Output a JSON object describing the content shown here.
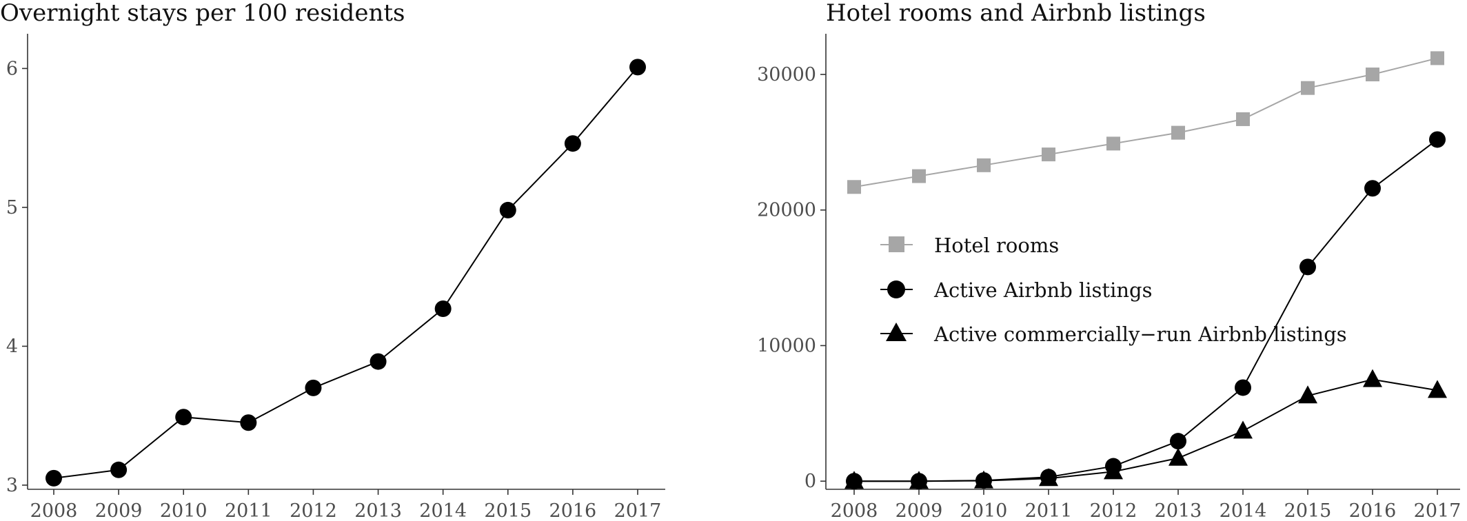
{
  "chart_data": [
    {
      "type": "line",
      "title": "Overnight stays per 100 residents",
      "xlabel": "",
      "ylabel": "",
      "categories": [
        "2008",
        "2009",
        "2010",
        "2011",
        "2012",
        "2013",
        "2014",
        "2015",
        "2016",
        "2017"
      ],
      "ylim": [
        2.97,
        6.25
      ],
      "yticks": [
        3,
        4,
        5,
        6
      ],
      "grid": false,
      "legend": "none",
      "series": [
        {
          "values": [
            3.05,
            3.11,
            3.49,
            3.45,
            3.7,
            3.89,
            4.27,
            4.98,
            5.46,
            6.01
          ],
          "marker": "circle",
          "color": "#000000"
        }
      ]
    },
    {
      "type": "line",
      "title": "Hotel rooms and Airbnb listings",
      "xlabel": "",
      "ylabel": "",
      "categories": [
        "2008",
        "2009",
        "2010",
        "2011",
        "2012",
        "2013",
        "2014",
        "2015",
        "2016",
        "2017"
      ],
      "ylim": [
        -600,
        33000
      ],
      "yticks": [
        0,
        10000,
        20000,
        30000
      ],
      "grid": false,
      "legend": "center-left",
      "series": [
        {
          "name": "Hotel rooms",
          "values": [
            21700,
            22500,
            23300,
            24100,
            24900,
            25700,
            26700,
            29000,
            30000,
            31200
          ],
          "marker": "square",
          "color": "#a6a6a6"
        },
        {
          "name": "Active Airbnb listings",
          "values": [
            0,
            0,
            50,
            300,
            1100,
            2950,
            6900,
            15800,
            21600,
            25200
          ],
          "marker": "circle",
          "color": "#000000"
        },
        {
          "name": "Active commercially−run Airbnb listings",
          "values": [
            0,
            0,
            30,
            200,
            700,
            1700,
            3700,
            6300,
            7500,
            6700
          ],
          "marker": "triangle",
          "color": "#000000"
        }
      ]
    }
  ]
}
